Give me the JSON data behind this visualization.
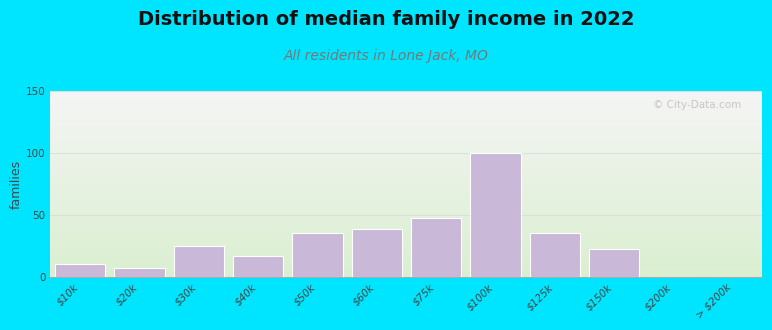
{
  "title": "Distribution of median family income in 2022",
  "subtitle": "All residents in Lone Jack, MO",
  "ylabel": "families",
  "categories": [
    "$10k",
    "$20k",
    "$30k",
    "$40k",
    "$50k",
    "$60k",
    "$75k",
    "$100k",
    "$125k",
    "$150k",
    "$200k",
    "> $200k"
  ],
  "values": [
    10,
    7,
    25,
    17,
    35,
    38,
    47,
    100,
    35,
    22,
    0,
    0
  ],
  "bar_color": "#c9b8d8",
  "bar_edge_color": "#ffffff",
  "background_outer": "#00e5ff",
  "background_inner_top": "#daefd0",
  "background_inner_bottom": "#f5f5f5",
  "title_fontsize": 14,
  "subtitle_fontsize": 10,
  "ylabel_fontsize": 9,
  "tick_fontsize": 7.5,
  "ylim": [
    0,
    150
  ],
  "yticks": [
    0,
    50,
    100,
    150
  ],
  "watermark_text": "© City-Data.com",
  "grid_color": "#dddddd"
}
